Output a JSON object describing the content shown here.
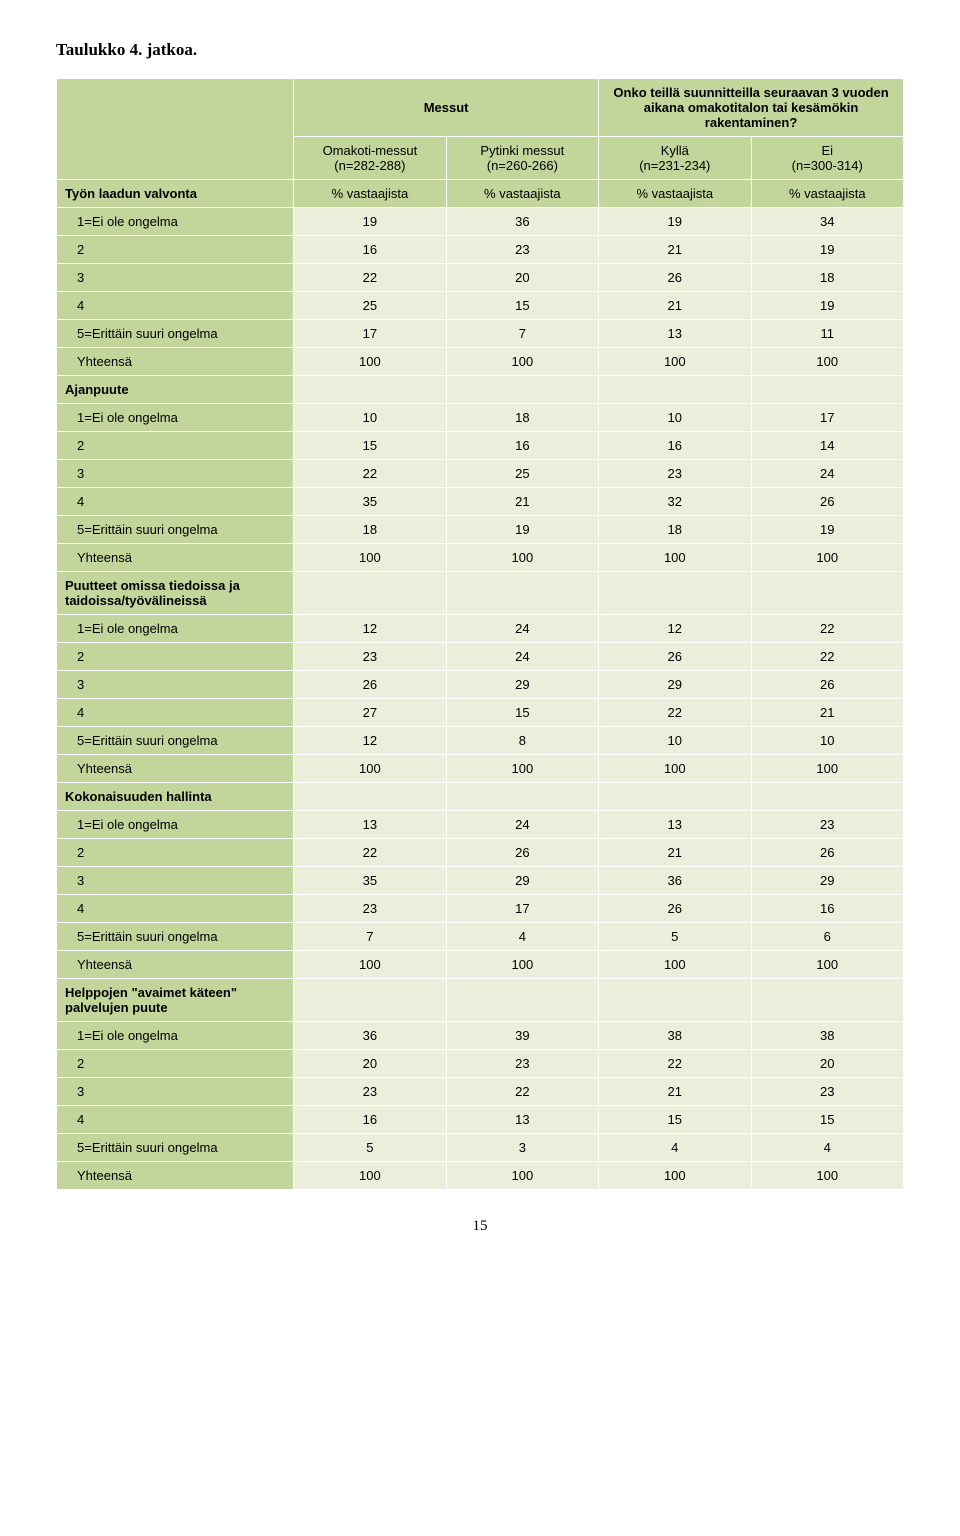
{
  "title": "Taulukko 4. jatkoa.",
  "page_number": "15",
  "header": {
    "group1": "Messut",
    "group2": "Onko teillä suunnitteilla seuraavan 3 vuoden aikana omakotitalon tai kesämökin rakentaminen?",
    "c1_name": "Omakoti-messut",
    "c1_n": "(n=282-288)",
    "c2_name": "Pytinki messut",
    "c2_n": "(n=260-266)",
    "c3_name": "Kyllä",
    "c3_n": "(n=231-234)",
    "c4_name": "Ei",
    "c4_n": "(n=300-314)"
  },
  "label_row": {
    "name": "Työn laadun valvonta",
    "c": [
      "% vastaajista",
      "% vastaajista",
      "% vastaajista",
      "% vastaajista"
    ]
  },
  "groups": [
    {
      "section": null,
      "rows": [
        {
          "l": "1=Ei ole ongelma",
          "v": [
            "19",
            "36",
            "19",
            "34"
          ]
        },
        {
          "l": "2",
          "v": [
            "16",
            "23",
            "21",
            "19"
          ]
        },
        {
          "l": "3",
          "v": [
            "22",
            "20",
            "26",
            "18"
          ]
        },
        {
          "l": "4",
          "v": [
            "25",
            "15",
            "21",
            "19"
          ]
        },
        {
          "l": "5=Erittäin suuri ongelma",
          "v": [
            "17",
            "7",
            "13",
            "11"
          ]
        },
        {
          "l": "Yhteensä",
          "v": [
            "100",
            "100",
            "100",
            "100"
          ]
        }
      ]
    },
    {
      "section": "Ajanpuute",
      "rows": [
        {
          "l": "1=Ei ole ongelma",
          "v": [
            "10",
            "18",
            "10",
            "17"
          ]
        },
        {
          "l": "2",
          "v": [
            "15",
            "16",
            "16",
            "14"
          ]
        },
        {
          "l": "3",
          "v": [
            "22",
            "25",
            "23",
            "24"
          ]
        },
        {
          "l": "4",
          "v": [
            "35",
            "21",
            "32",
            "26"
          ]
        },
        {
          "l": "5=Erittäin suuri ongelma",
          "v": [
            "18",
            "19",
            "18",
            "19"
          ]
        },
        {
          "l": "Yhteensä",
          "v": [
            "100",
            "100",
            "100",
            "100"
          ]
        }
      ]
    },
    {
      "section": "Puutteet omissa tiedoissa ja taidoissa/työvälineissä",
      "rows": [
        {
          "l": "1=Ei ole ongelma",
          "v": [
            "12",
            "24",
            "12",
            "22"
          ]
        },
        {
          "l": "2",
          "v": [
            "23",
            "24",
            "26",
            "22"
          ]
        },
        {
          "l": "3",
          "v": [
            "26",
            "29",
            "29",
            "26"
          ]
        },
        {
          "l": "4",
          "v": [
            "27",
            "15",
            "22",
            "21"
          ]
        },
        {
          "l": "5=Erittäin suuri ongelma",
          "v": [
            "12",
            "8",
            "10",
            "10"
          ]
        },
        {
          "l": "Yhteensä",
          "v": [
            "100",
            "100",
            "100",
            "100"
          ]
        }
      ]
    },
    {
      "section": "Kokonaisuuden hallinta",
      "rows": [
        {
          "l": "1=Ei ole ongelma",
          "v": [
            "13",
            "24",
            "13",
            "23"
          ]
        },
        {
          "l": "2",
          "v": [
            "22",
            "26",
            "21",
            "26"
          ]
        },
        {
          "l": "3",
          "v": [
            "35",
            "29",
            "36",
            "29"
          ]
        },
        {
          "l": "4",
          "v": [
            "23",
            "17",
            "26",
            "16"
          ]
        },
        {
          "l": "5=Erittäin suuri ongelma",
          "v": [
            "7",
            "4",
            "5",
            "6"
          ]
        },
        {
          "l": "Yhteensä",
          "v": [
            "100",
            "100",
            "100",
            "100"
          ]
        }
      ]
    },
    {
      "section": "Helppojen \"avaimet käteen\" palvelujen puute",
      "rows": [
        {
          "l": "1=Ei ole ongelma",
          "v": [
            "36",
            "39",
            "38",
            "38"
          ]
        },
        {
          "l": "2",
          "v": [
            "20",
            "23",
            "22",
            "20"
          ]
        },
        {
          "l": "3",
          "v": [
            "23",
            "22",
            "21",
            "23"
          ]
        },
        {
          "l": "4",
          "v": [
            "16",
            "13",
            "15",
            "15"
          ]
        },
        {
          "l": "5=Erittäin suuri ongelma",
          "v": [
            "5",
            "3",
            "4",
            "4"
          ]
        },
        {
          "l": "Yhteensä",
          "v": [
            "100",
            "100",
            "100",
            "100"
          ]
        }
      ]
    }
  ],
  "colors": {
    "header_bg": "#c2d59b",
    "data_bg": "#e9efdb",
    "border": "#ffffff"
  }
}
